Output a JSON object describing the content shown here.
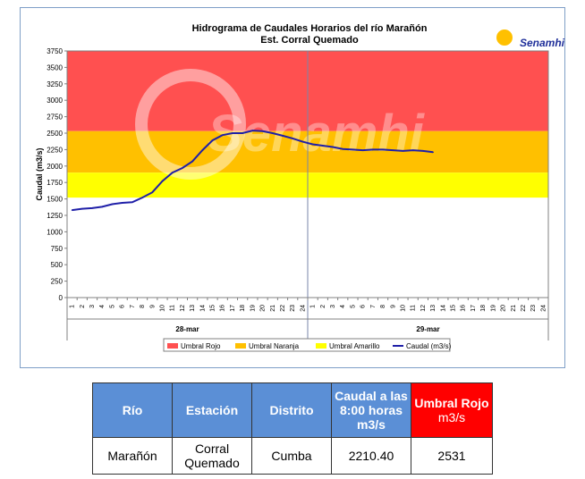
{
  "chart_data": {
    "type": "line",
    "title": "Hidrograma de Caudales Horarios del río Marañón",
    "subtitle": "Est. Corral Quemado",
    "ylabel": "Caudal  (m3/s)",
    "ylim": [
      0,
      3750
    ],
    "y_ticks": [
      "0",
      "250",
      "500",
      "750",
      "1000",
      "1250",
      "1500",
      "1750",
      "2000",
      "2250",
      "2500",
      "2750",
      "3000",
      "3250",
      "3500",
      "3750"
    ],
    "x_ticks": [
      "1",
      "2",
      "3",
      "4",
      "5",
      "6",
      "7",
      "8",
      "9",
      "10",
      "11",
      "12",
      "13",
      "14",
      "15",
      "16",
      "17",
      "18",
      "19",
      "20",
      "21",
      "22",
      "23",
      "24",
      "1",
      "2",
      "3",
      "4",
      "5",
      "6",
      "7",
      "8",
      "9",
      "10",
      "11",
      "12",
      "13",
      "14",
      "15",
      "16",
      "17",
      "18",
      "19",
      "20",
      "21",
      "22",
      "23",
      "24"
    ],
    "date_labels": [
      "28-mar",
      "29-mar"
    ],
    "bands": [
      {
        "name": "Umbral Rojo",
        "from": 2531,
        "to": 3750,
        "color": "#ff5050"
      },
      {
        "name": "Umbral Naranja",
        "from": 1900,
        "to": 2531,
        "color": "#ffc000"
      },
      {
        "name": "Umbral Amarillo",
        "from": 1520,
        "to": 1900,
        "color": "#ffff00"
      }
    ],
    "series": [
      {
        "name": "Caudal (m3/s)",
        "color": "#1f1fa8",
        "values": [
          1330,
          1350,
          1360,
          1380,
          1420,
          1440,
          1450,
          1520,
          1600,
          1770,
          1900,
          1970,
          2070,
          2240,
          2390,
          2470,
          2500,
          2500,
          2540,
          2530,
          2500,
          2460,
          2420,
          2370,
          2330,
          2310,
          2290,
          2260,
          2250,
          2240,
          2250,
          2250,
          2240,
          2230,
          2240,
          2230,
          2210
        ]
      }
    ],
    "watermark": "Senamhi",
    "legend": [
      "Umbral Rojo",
      "Umbral Naranja",
      "Umbral Amarillo",
      "Caudal (m3/s)"
    ]
  },
  "logo": {
    "text": "Senamhi"
  },
  "table": {
    "headers": [
      "Río",
      "Estación",
      "Distrito",
      "Caudal a las 8:00 horas m3/s",
      "Umbral Rojo"
    ],
    "umbral_sub": "m3/s",
    "row": [
      "Marañón",
      "Corral Quemado",
      "Cumba",
      "2210.40",
      "2531"
    ]
  }
}
